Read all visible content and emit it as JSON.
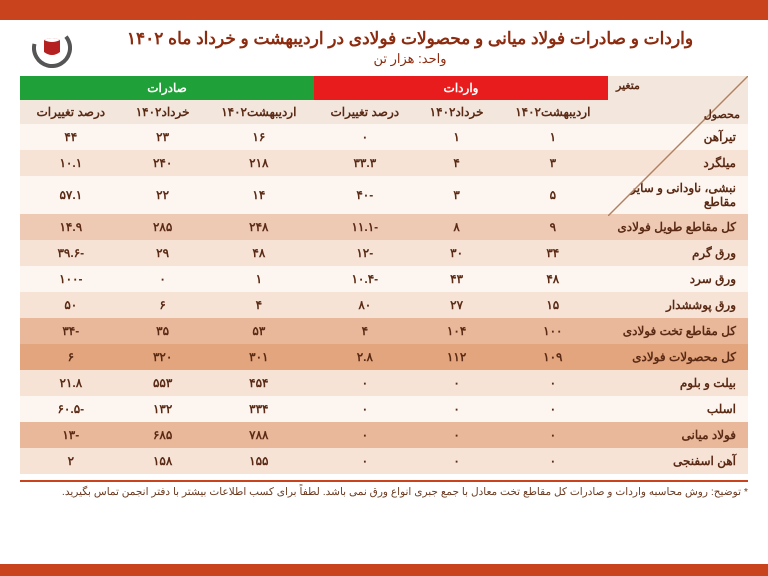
{
  "colors": {
    "top_bar": "#c9441c",
    "title_text": "#8b2b0f",
    "hdr_imports_bg": "#e81c1c",
    "hdr_exports_bg": "#1fa038",
    "subhdr_bg": "#f2e6dd",
    "row_alt_a": "#fdf5ef",
    "row_alt_b": "#f6e3d6",
    "row_summary1": "#eecab4",
    "row_summary2": "#e9b89a",
    "row_summary3": "#e3a57e",
    "cell_text": "#5a2a15"
  },
  "title": "واردات و صادرات فولاد میانی و محصولات فولادی در اردیبهشت و خرداد ماه ۱۴۰۲",
  "subtitle": "واحد: هزار تن",
  "corner": {
    "top": "متغیر",
    "bottom": "محصول"
  },
  "group_headers": {
    "imports": "واردات",
    "exports": "صادرات"
  },
  "sub_headers": {
    "imp_ord": "اردیبهشت۱۴۰۲",
    "imp_kho": "خرداد۱۴۰۲",
    "imp_pct": "درصد تغییرات",
    "exp_ord": "اردیبهشت۱۴۰۲",
    "exp_kho": "خرداد۱۴۰۲",
    "exp_pct": "درصد تغییرات"
  },
  "rows": [
    {
      "name": "تیرآهن",
      "imp_ord": "۱",
      "imp_kho": "۱",
      "imp_pct": "۰",
      "exp_ord": "۱۶",
      "exp_kho": "۲۳",
      "exp_pct": "۴۴",
      "bg": "#fdf5ef"
    },
    {
      "name": "میلگرد",
      "imp_ord": "۳",
      "imp_kho": "۴",
      "imp_pct": "۳۳.۳",
      "exp_ord": "۲۱۸",
      "exp_kho": "۲۴۰",
      "exp_pct": "۱۰.۱",
      "bg": "#f6e3d6"
    },
    {
      "name": "نبشی، ناودانی و سایر مقاطع",
      "imp_ord": "۵",
      "imp_kho": "۳",
      "imp_pct": "-۴۰",
      "exp_ord": "۱۴",
      "exp_kho": "۲۲",
      "exp_pct": "۵۷.۱",
      "bg": "#fdf5ef"
    },
    {
      "name": "کل مقاطع طویل فولادی",
      "imp_ord": "۹",
      "imp_kho": "۸",
      "imp_pct": "-۱۱.۱",
      "exp_ord": "۲۴۸",
      "exp_kho": "۲۸۵",
      "exp_pct": "۱۴.۹",
      "bg": "#eecab4"
    },
    {
      "name": "ورق گرم",
      "imp_ord": "۳۴",
      "imp_kho": "۳۰",
      "imp_pct": "-۱۲",
      "exp_ord": "۴۸",
      "exp_kho": "۲۹",
      "exp_pct": "-۳۹.۶",
      "bg": "#f6e3d6"
    },
    {
      "name": "ورق سرد",
      "imp_ord": "۴۸",
      "imp_kho": "۴۳",
      "imp_pct": "-۱۰.۴",
      "exp_ord": "۱",
      "exp_kho": "۰",
      "exp_pct": "-۱۰۰",
      "bg": "#fdf5ef"
    },
    {
      "name": "ورق پوششدار",
      "imp_ord": "۱۵",
      "imp_kho": "۲۷",
      "imp_pct": "۸۰",
      "exp_ord": "۴",
      "exp_kho": "۶",
      "exp_pct": "۵۰",
      "bg": "#f6e3d6"
    },
    {
      "name": "کل مقاطع تخت فولادی",
      "imp_ord": "۱۰۰",
      "imp_kho": "۱۰۴",
      "imp_pct": "۴",
      "exp_ord": "۵۳",
      "exp_kho": "۳۵",
      "exp_pct": "-۳۴",
      "bg": "#e9b89a"
    },
    {
      "name": "کل محصولات فولادی",
      "imp_ord": "۱۰۹",
      "imp_kho": "۱۱۲",
      "imp_pct": "۲.۸",
      "exp_ord": "۳۰۱",
      "exp_kho": "۳۲۰",
      "exp_pct": "۶",
      "bg": "#e3a57e"
    },
    {
      "name": "بیلت و بلوم",
      "imp_ord": "۰",
      "imp_kho": "۰",
      "imp_pct": "۰",
      "exp_ord": "۴۵۴",
      "exp_kho": "۵۵۳",
      "exp_pct": "۲۱.۸",
      "bg": "#f6e3d6"
    },
    {
      "name": "اسلب",
      "imp_ord": "۰",
      "imp_kho": "۰",
      "imp_pct": "۰",
      "exp_ord": "۳۳۴",
      "exp_kho": "۱۳۲",
      "exp_pct": "-۶۰.۵",
      "bg": "#fdf5ef"
    },
    {
      "name": "فولاد میانی",
      "imp_ord": "۰",
      "imp_kho": "۰",
      "imp_pct": "۰",
      "exp_ord": "۷۸۸",
      "exp_kho": "۶۸۵",
      "exp_pct": "-۱۳",
      "bg": "#e9b89a"
    },
    {
      "name": "آهن اسفنجی",
      "imp_ord": "۰",
      "imp_kho": "۰",
      "imp_pct": "۰",
      "exp_ord": "۱۵۵",
      "exp_kho": "۱۵۸",
      "exp_pct": "۲",
      "bg": "#f6e3d6"
    }
  ],
  "footnote": "* توضیح: روش محاسبه واردات و صادرات کل مقاطع تخت معادل با جمع جبری انواع ورق نمی باشد. لطفاً برای کسب اطلاعات بیشتر با دفتر انجمن تماس بگیرید."
}
